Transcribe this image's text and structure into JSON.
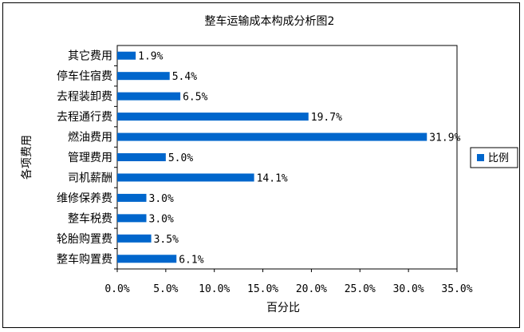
{
  "chart_data": {
    "type": "bar",
    "orientation": "horizontal",
    "title": "整车运输成本构成分析图2",
    "xlabel": "百分比",
    "ylabel": "各项费用",
    "categories": [
      "整车购置费",
      "轮胎购置费",
      "整车税费",
      "维修保养费",
      "司机薪酬",
      "管理费用",
      "燃油费用",
      "去程通行费",
      "去程装卸费",
      "停车住宿费",
      "其它费用"
    ],
    "series": [
      {
        "name": "比例",
        "values": [
          6.1,
          3.5,
          3.0,
          3.0,
          14.1,
          5.0,
          31.9,
          19.7,
          6.5,
          5.4,
          1.9
        ],
        "value_labels": [
          "6.1%",
          "3.5%",
          "3.0%",
          "3.0%",
          "14.1%",
          "5.0%",
          "31.9%",
          "19.7%",
          "6.5%",
          "5.4%",
          "1.9%"
        ]
      }
    ],
    "xlim": [
      0,
      35
    ],
    "xticks": [
      "0.0%",
      "5.0%",
      "10.0%",
      "15.0%",
      "20.0%",
      "25.0%",
      "30.0%",
      "35.0%"
    ],
    "grid": false,
    "legend_position": "right",
    "colors": {
      "bar": "#0066cc"
    }
  }
}
